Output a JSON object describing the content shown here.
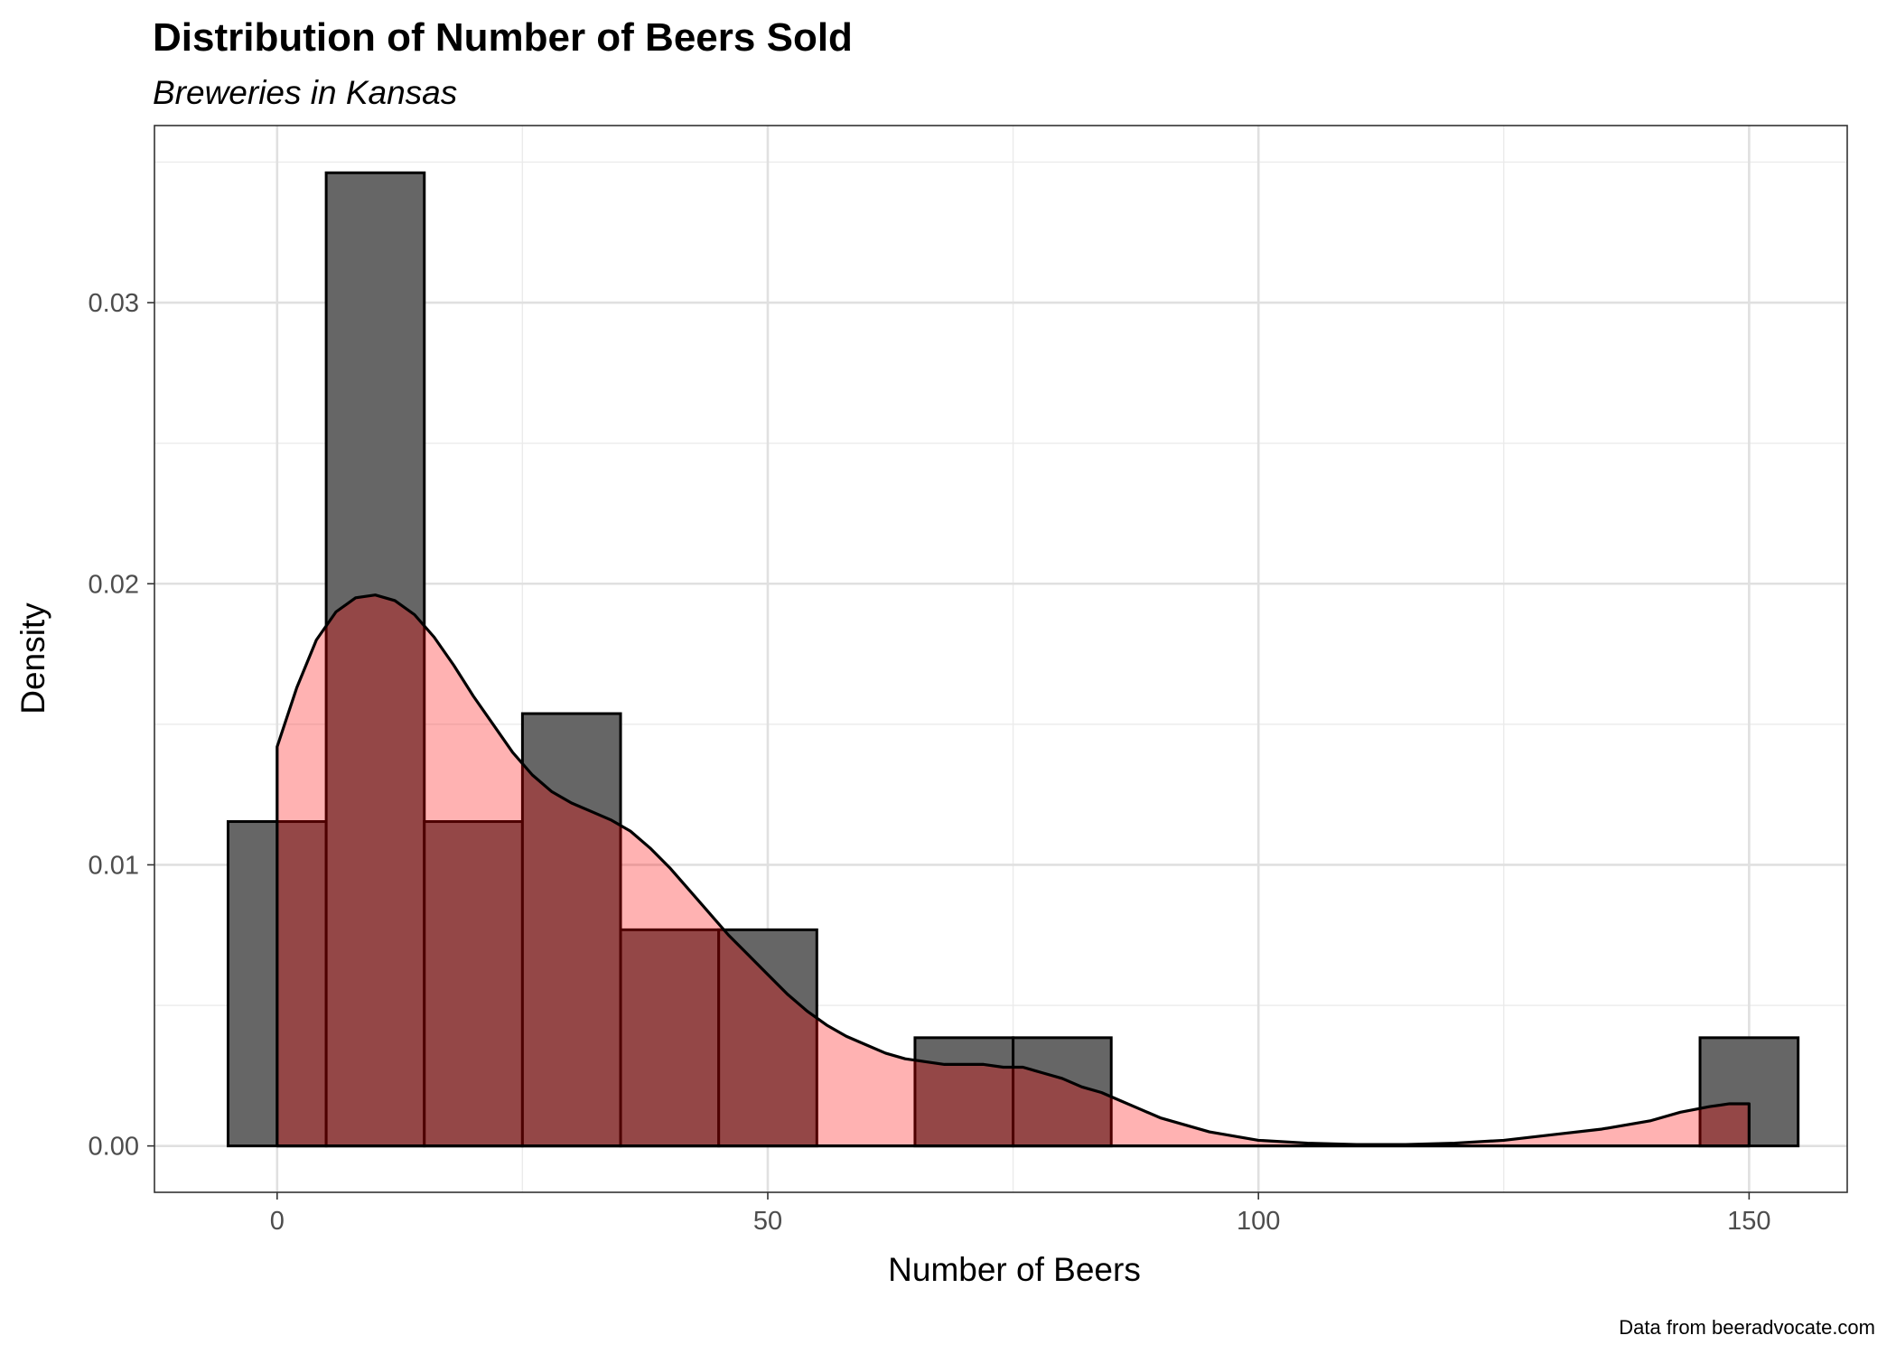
{
  "title": "Distribution of Number of Beers Sold",
  "subtitle": "Breweries in Kansas",
  "caption": "Data from beeradvocate.com",
  "chart_data": {
    "type": "histogram",
    "title": "Distribution of Number of Beers Sold",
    "subtitle": "Breweries in Kansas",
    "xlabel": "Number of Beers",
    "ylabel": "Density",
    "xlim": [
      -12.5,
      160
    ],
    "ylim": [
      -0.00165,
      0.0363
    ],
    "x_ticks": [
      0,
      50,
      100,
      150
    ],
    "x_tick_labels": [
      "0",
      "50",
      "100",
      "150"
    ],
    "y_ticks": [
      0,
      0.01,
      0.02,
      0.03
    ],
    "y_tick_labels": [
      "0.00",
      "0.01",
      "0.02",
      "0.03"
    ],
    "grid": true,
    "histogram": {
      "bin_width": 10,
      "fill": "#666666",
      "bins": [
        {
          "x0": -5,
          "x1": 5,
          "density": 0.01154
        },
        {
          "x0": 5,
          "x1": 15,
          "density": 0.03462
        },
        {
          "x0": 15,
          "x1": 25,
          "density": 0.01154
        },
        {
          "x0": 25,
          "x1": 35,
          "density": 0.01538
        },
        {
          "x0": 35,
          "x1": 45,
          "density": 0.00769
        },
        {
          "x0": 45,
          "x1": 55,
          "density": 0.00769
        },
        {
          "x0": 55,
          "x1": 65,
          "density": 0
        },
        {
          "x0": 65,
          "x1": 75,
          "density": 0.00385
        },
        {
          "x0": 75,
          "x1": 85,
          "density": 0.00385
        },
        {
          "x0": 85,
          "x1": 95,
          "density": 0
        },
        {
          "x0": 95,
          "x1": 105,
          "density": 0
        },
        {
          "x0": 105,
          "x1": 115,
          "density": 0
        },
        {
          "x0": 115,
          "x1": 125,
          "density": 0
        },
        {
          "x0": 125,
          "x1": 135,
          "density": 0
        },
        {
          "x0": 135,
          "x1": 145,
          "density": 0
        },
        {
          "x0": 145,
          "x1": 155,
          "density": 0.00385
        }
      ]
    },
    "density_curve": {
      "fill": "#ff0000",
      "x": [
        0,
        2,
        4,
        6,
        8,
        10,
        12,
        14,
        16,
        18,
        20,
        22,
        24,
        26,
        28,
        30,
        32,
        34,
        36,
        38,
        40,
        42,
        44,
        46,
        48,
        50,
        52,
        54,
        56,
        58,
        60,
        62,
        64,
        66,
        68,
        70,
        72,
        74,
        76,
        78,
        80,
        82,
        84,
        86,
        88,
        90,
        95,
        100,
        105,
        110,
        115,
        120,
        125,
        130,
        135,
        140,
        143,
        146,
        148,
        150
      ],
      "y": [
        0.0142,
        0.0163,
        0.018,
        0.019,
        0.0195,
        0.0196,
        0.0194,
        0.0189,
        0.0181,
        0.0171,
        0.016,
        0.015,
        0.014,
        0.0132,
        0.0126,
        0.0122,
        0.0119,
        0.0116,
        0.0112,
        0.0106,
        0.0099,
        0.0091,
        0.0083,
        0.0075,
        0.0068,
        0.0061,
        0.0054,
        0.0048,
        0.0043,
        0.0039,
        0.0036,
        0.0033,
        0.0031,
        0.003,
        0.0029,
        0.0029,
        0.0029,
        0.0028,
        0.0028,
        0.0026,
        0.0024,
        0.0021,
        0.0019,
        0.0016,
        0.0013,
        0.001,
        0.0005,
        0.0002,
        0.0001,
        5e-05,
        5e-05,
        0.0001,
        0.0002,
        0.0004,
        0.0006,
        0.0009,
        0.0012,
        0.0014,
        0.0015,
        0.0015
      ]
    }
  }
}
